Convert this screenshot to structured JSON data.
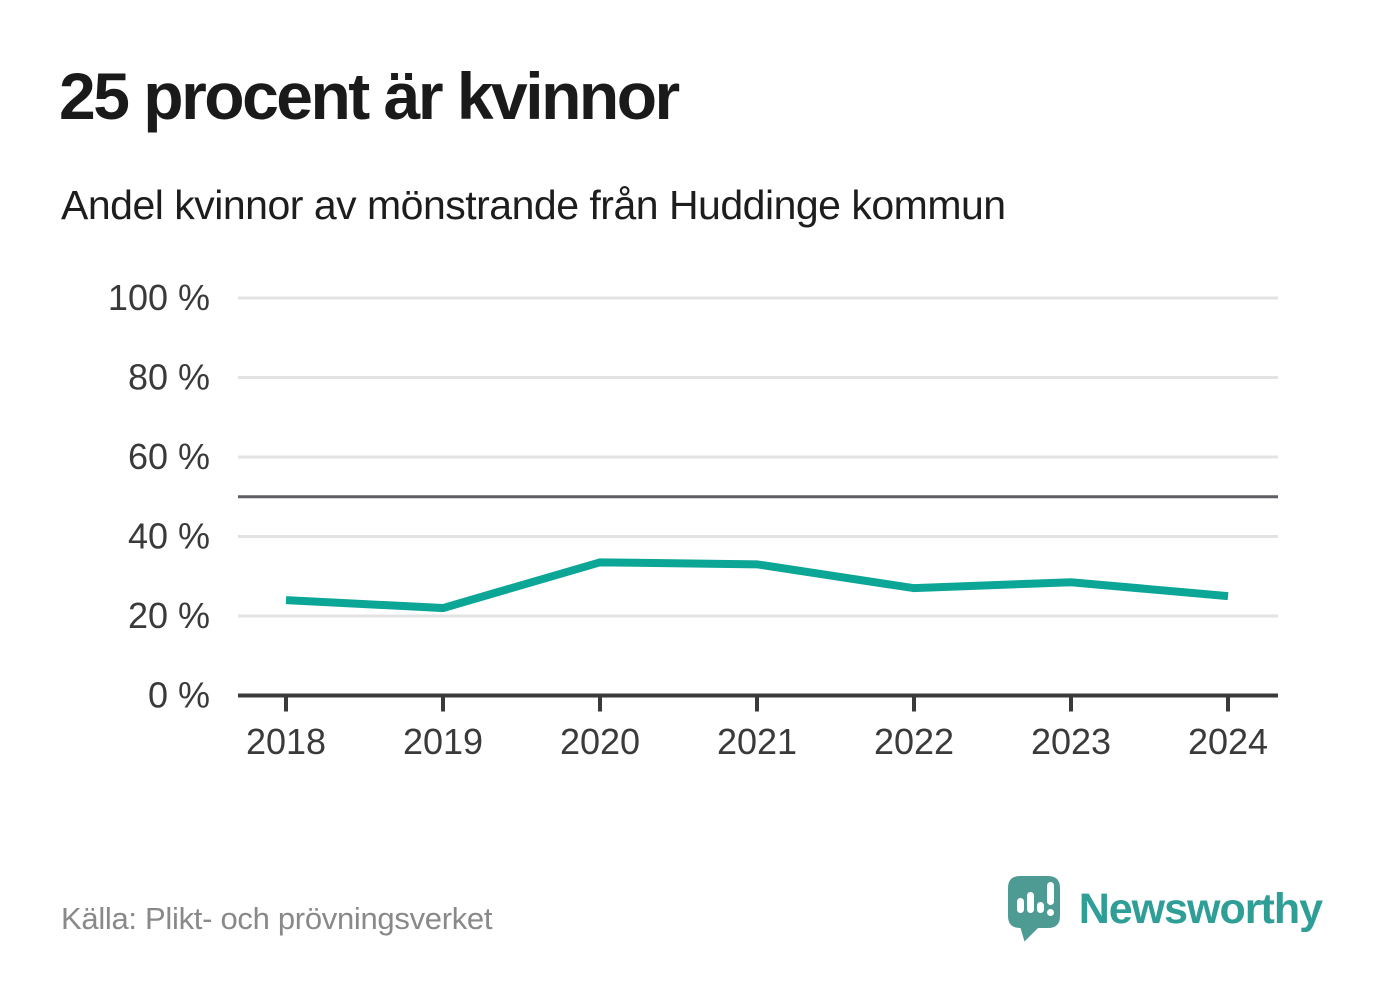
{
  "header": {
    "title": "25 procent är kvinnor",
    "subtitle": "Andel kvinnor av mönstrande från Huddinge kommun"
  },
  "chart_data": {
    "type": "line",
    "title": "25 procent är kvinnor",
    "subtitle": "Andel kvinnor av mönstrande från Huddinge kommun",
    "categories": [
      "2018",
      "2019",
      "2020",
      "2021",
      "2022",
      "2023",
      "2024"
    ],
    "series": [
      {
        "name": "Andel kvinnor av mönstrande",
        "values": [
          24,
          22,
          33.5,
          33,
          27,
          28.5,
          25
        ]
      }
    ],
    "xlabel": "",
    "ylabel": "",
    "ylim": [
      0,
      100
    ],
    "yticks": [
      0,
      20,
      40,
      60,
      80,
      100
    ],
    "ytick_suffix": " %",
    "reference_line": 50,
    "grid": true,
    "legend": "none",
    "line_color": "#0ba696",
    "grid_color": "#e3e3e3",
    "reference_line_color": "#5f5f63",
    "axis_color": "#3a3a3a",
    "tick_label_color": "#3a3a3a"
  },
  "footer": {
    "source": "Källa: Plikt- och prövningsverket",
    "brand": "Newsworthy",
    "brand_color": "#2f9e97",
    "logo_color": "#4e9b94"
  }
}
